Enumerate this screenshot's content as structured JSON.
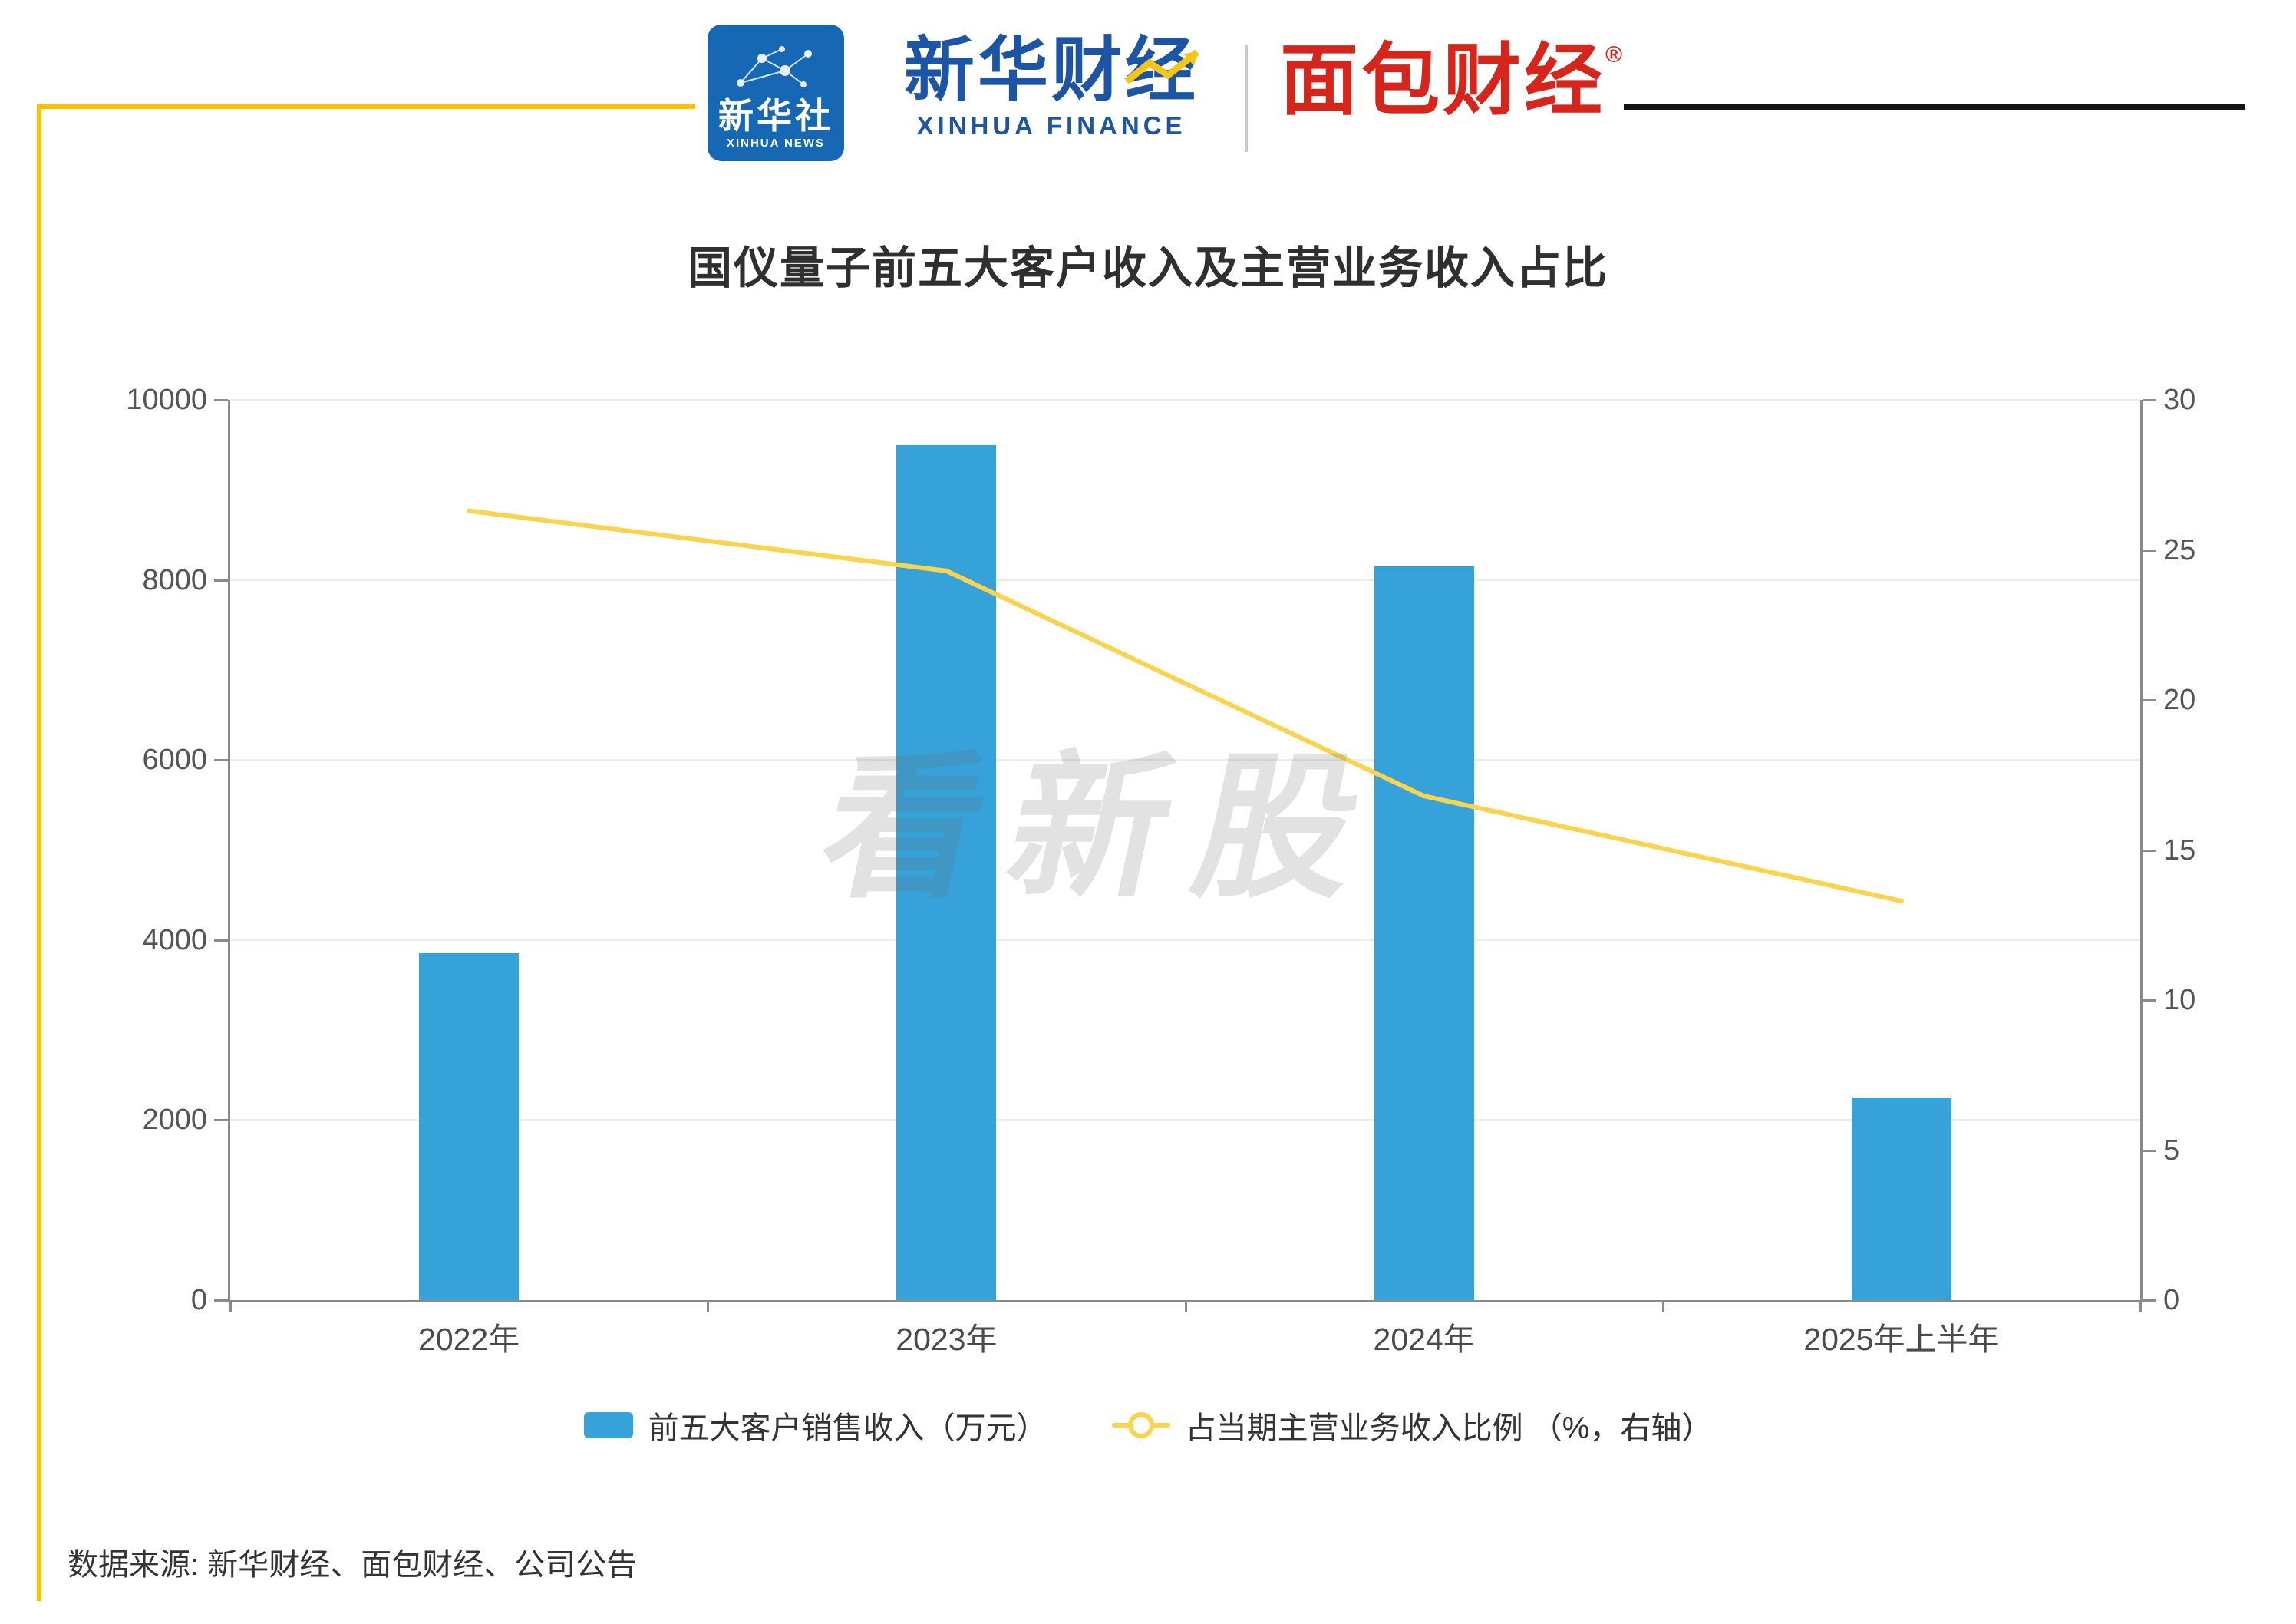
{
  "header": {
    "xinhua_news": {
      "cn": "新华社",
      "en": "XINHUA NEWS"
    },
    "xinhua_finance": {
      "cn": "新华财经",
      "en": "XINHUA FINANCE"
    },
    "mianbao_finance": {
      "cn": "面包财经",
      "reg": "®"
    }
  },
  "watermark": "看新股",
  "source": "数据来源: 新华财经、面包财经、公司公告",
  "colors": {
    "bar": "#36A2DA",
    "line": "#FBD34D",
    "frame": "#FFC000",
    "axis": "#8A8A8A",
    "brand_blue": "#1C55A5",
    "brand_red": "#D8251C"
  },
  "chart_data": {
    "type": "bar+line",
    "title": "国仪量子前五大客户收入及主营业务收入占比",
    "categories": [
      "2022年",
      "2023年",
      "2024年",
      "2025年上半年"
    ],
    "series": [
      {
        "name": "前五大客户销售收入（万元）",
        "type": "bar",
        "axis": "left",
        "color": "#36A2DA",
        "values": [
          3850,
          9500,
          8150,
          2250
        ]
      },
      {
        "name": "占当期主营业务收入比例 （%，右轴）",
        "type": "line",
        "axis": "right",
        "color": "#FBD34D",
        "values": [
          26.3,
          24.3,
          16.8,
          13.3
        ]
      }
    ],
    "left_axis": {
      "min": 0,
      "max": 10000,
      "ticks": [
        0,
        2000,
        4000,
        6000,
        8000,
        10000
      ]
    },
    "right_axis": {
      "min": 0,
      "max": 30,
      "ticks": [
        0,
        5,
        10,
        15,
        20,
        25,
        30
      ]
    },
    "legend_position": "bottom",
    "grid": true
  }
}
